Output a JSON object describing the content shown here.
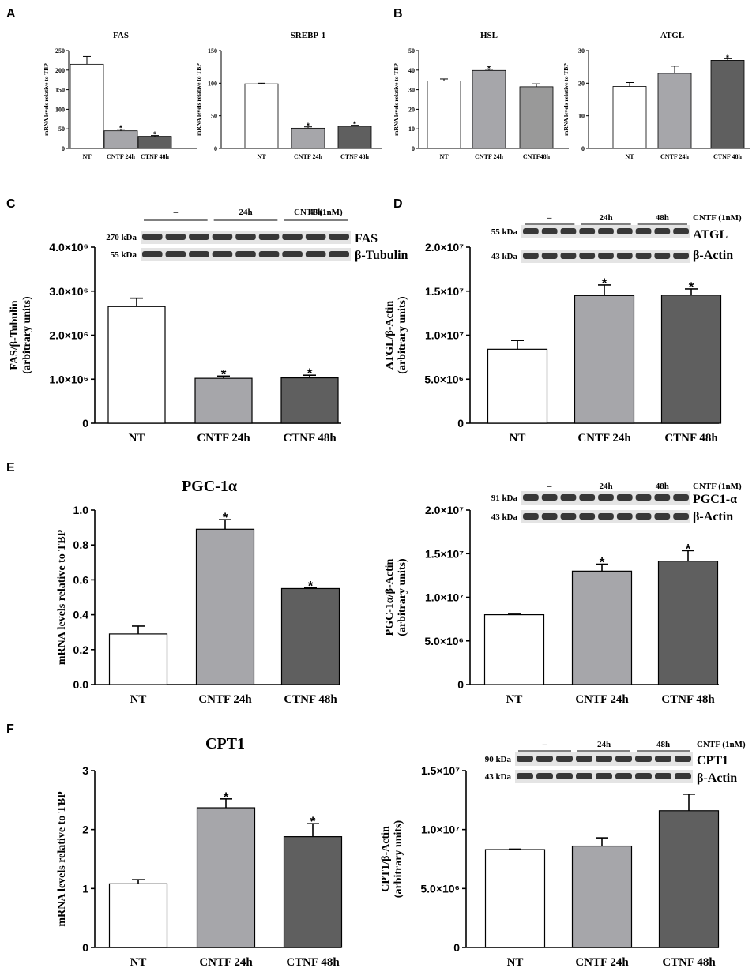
{
  "panel_letters": {
    "A": "A",
    "B": "B",
    "C": "C",
    "D": "D",
    "E": "E",
    "F": "F"
  },
  "colors": {
    "NT": "#ffffff",
    "CNTF 24h": "#a6a6aa",
    "CTNF 48h": "#5f5f5f",
    "CTNF48h": "#303030"
  },
  "blots": {
    "C": {
      "treatment": "CNTF (1nM)",
      "groups": [
        "–",
        "24h",
        "48h"
      ],
      "rows": [
        {
          "kda": "270 kDa",
          "name": "FAS"
        },
        {
          "kda": "55 kDa",
          "name": "β-Tubulin"
        }
      ]
    },
    "D": {
      "treatment": "CNTF (1nM)",
      "groups": [
        "–",
        "24h",
        "48h"
      ],
      "rows": [
        {
          "kda": "55 kDa",
          "name": "ATGL"
        },
        {
          "kda": "43 kDa",
          "name": "β-Actin"
        }
      ]
    },
    "E": {
      "treatment": "CNTF (1nM)",
      "groups": [
        "–",
        "24h",
        "48h"
      ],
      "rows": [
        {
          "kda": "91 kDa",
          "name": "PGC1-α"
        },
        {
          "kda": "43 kDa",
          "name": "β-Actin"
        }
      ]
    },
    "F": {
      "treatment": "CNTF (1nM)",
      "groups": [
        "–",
        "24h",
        "48h"
      ],
      "rows": [
        {
          "kda": "90 kDa",
          "name": "CPT1"
        },
        {
          "kda": "43 kDa",
          "name": "β-Actin"
        }
      ]
    }
  },
  "chart_data": [
    {
      "id": "A1",
      "panel": "A",
      "type": "bar",
      "title": "FAS",
      "ylabel": "mRNA levels relative to TBP",
      "categories": [
        "NT",
        "CNTF 24h",
        "CTNF 48h"
      ],
      "values": [
        215,
        45,
        31
      ],
      "errors": [
        20,
        4,
        2
      ],
      "significant": [
        false,
        true,
        true
      ],
      "ylim": [
        0,
        250
      ],
      "yticks": [
        0,
        50,
        100,
        150,
        200,
        250
      ],
      "ytick_labels": [
        "0",
        "50",
        "100",
        "150",
        "200",
        "250"
      ]
    },
    {
      "id": "A2",
      "panel": "A",
      "type": "bar",
      "title": "SREBP-1",
      "ylabel": "mRNA levels relative to TBP",
      "categories": [
        "NT",
        "CNTF 24h",
        "CTNF 48h"
      ],
      "values": [
        99,
        31,
        34
      ],
      "errors": [
        1,
        2,
        1.5
      ],
      "significant": [
        false,
        true,
        true
      ],
      "ylim": [
        0,
        150
      ],
      "yticks": [
        0,
        50,
        100,
        150
      ],
      "ytick_labels": [
        "0",
        "50",
        "100",
        "150"
      ]
    },
    {
      "id": "B1",
      "panel": "B",
      "type": "bar",
      "title": "HSL",
      "ylabel": "mRNA levels relative to TBP",
      "categories": [
        "NT",
        "CNTF 24h",
        "CNTF48h"
      ],
      "values": [
        34.5,
        39.8,
        31.5
      ],
      "errors": [
        1.0,
        0.6,
        1.5
      ],
      "significant": [
        false,
        true,
        false
      ],
      "ylim": [
        0,
        50
      ],
      "yticks": [
        0,
        10,
        20,
        30,
        40,
        50
      ],
      "ytick_labels": [
        "0",
        "10",
        "20",
        "30",
        "40",
        "50"
      ]
    },
    {
      "id": "B2",
      "panel": "B",
      "type": "bar",
      "title": "ATGL",
      "ylabel": "mRNA levels relative to TBP",
      "categories": [
        "NT",
        "CNTF 24h",
        "CTNF 48h"
      ],
      "values": [
        19,
        23,
        27
      ],
      "errors": [
        1.2,
        2.2,
        0.5
      ],
      "significant": [
        false,
        false,
        true
      ],
      "ylim": [
        0,
        30
      ],
      "yticks": [
        0,
        10,
        20,
        30
      ],
      "ytick_labels": [
        "0",
        "10",
        "20",
        "30"
      ]
    },
    {
      "id": "C",
      "panel": "C",
      "type": "bar",
      "title": "",
      "ylabel": "FAS/β-Tubulin",
      "ylabel2": "(arbitrary units)",
      "categories": [
        "NT",
        "CNTF 24h",
        "CTNF 48h"
      ],
      "values": [
        2650000,
        1020000,
        1030000
      ],
      "errors": [
        190000,
        50000,
        60000
      ],
      "significant": [
        false,
        true,
        true
      ],
      "ylim": [
        0,
        4000000
      ],
      "yticks": [
        0,
        1000000,
        2000000,
        3000000,
        4000000
      ],
      "ytick_labels": [
        "0",
        "1.0×10⁶",
        "2.0×10⁶",
        "3.0×10⁶",
        "4.0×10⁶"
      ]
    },
    {
      "id": "D",
      "panel": "D",
      "type": "bar",
      "title": "",
      "ylabel": "ATGL/β-Actin",
      "ylabel2": "(arbitrary units)",
      "categories": [
        "NT",
        "CNTF 24h",
        "CTNF 48h"
      ],
      "values": [
        8400000,
        14500000,
        14550000
      ],
      "errors": [
        1000000,
        1200000,
        700000
      ],
      "significant": [
        false,
        true,
        true
      ],
      "ylim": [
        0,
        20000000
      ],
      "yticks": [
        0,
        5000000,
        10000000,
        15000000,
        20000000
      ],
      "ytick_labels": [
        "0",
        "5.0×10⁶",
        "1.0×10⁷",
        "1.5×10⁷",
        "2.0×10⁷"
      ]
    },
    {
      "id": "E1",
      "panel": "E",
      "type": "bar",
      "title": "PGC-1α",
      "ylabel": "mRNA levels relative to TBP",
      "categories": [
        "NT",
        "CNTF 24h",
        "CTNF 48h"
      ],
      "values": [
        0.29,
        0.89,
        0.55
      ],
      "errors": [
        0.045,
        0.055,
        0.004
      ],
      "significant": [
        false,
        true,
        true
      ],
      "ylim": [
        0,
        1.0
      ],
      "yticks": [
        0,
        0.2,
        0.4,
        0.6,
        0.8,
        1.0
      ],
      "ytick_labels": [
        "0.0",
        "0.2",
        "0.4",
        "0.6",
        "0.8",
        "1.0"
      ]
    },
    {
      "id": "E2",
      "panel": "E",
      "type": "bar",
      "title": "",
      "ylabel": "PGC-1α/β-Actin",
      "ylabel2": "(arbitrary units)",
      "categories": [
        "NT",
        "CNTF 24h",
        "CTNF 48h"
      ],
      "values": [
        8000000,
        13000000,
        14150000
      ],
      "errors": [
        60000,
        800000,
        1200000
      ],
      "significant": [
        false,
        true,
        true
      ],
      "ylim": [
        0,
        20000000
      ],
      "yticks": [
        0,
        5000000,
        10000000,
        15000000,
        20000000
      ],
      "ytick_labels": [
        "0",
        "5.0×10⁶",
        "1.0×10⁷",
        "1.5×10⁷",
        "2.0×10⁷"
      ]
    },
    {
      "id": "F1",
      "panel": "F",
      "type": "bar",
      "title": "CPT1",
      "ylabel": "mRNA levels relative to TBP",
      "categories": [
        "NT",
        "CNTF 24h",
        "CTNF 48h"
      ],
      "values": [
        1.08,
        2.37,
        1.88
      ],
      "errors": [
        0.07,
        0.15,
        0.22
      ],
      "significant": [
        false,
        true,
        true
      ],
      "ylim": [
        0,
        3
      ],
      "yticks": [
        0,
        1,
        2,
        3
      ],
      "ytick_labels": [
        "0",
        "1",
        "2",
        "3"
      ]
    },
    {
      "id": "F2",
      "panel": "F",
      "type": "bar",
      "title": "",
      "ylabel": "CPT1/β-Actin",
      "ylabel2": "(arbitrary units)",
      "categories": [
        "NT",
        "CNTF 24h",
        "CTNF 48h"
      ],
      "values": [
        8300000,
        8600000,
        11600000
      ],
      "errors": [
        40000,
        700000,
        1400000
      ],
      "significant": [
        false,
        false,
        false
      ],
      "ylim": [
        0,
        15000000
      ],
      "yticks": [
        0,
        5000000,
        10000000,
        15000000
      ],
      "ytick_labels": [
        "0",
        "5.0×10⁶",
        "1.0×10⁷",
        "1.5×10⁷"
      ]
    }
  ]
}
